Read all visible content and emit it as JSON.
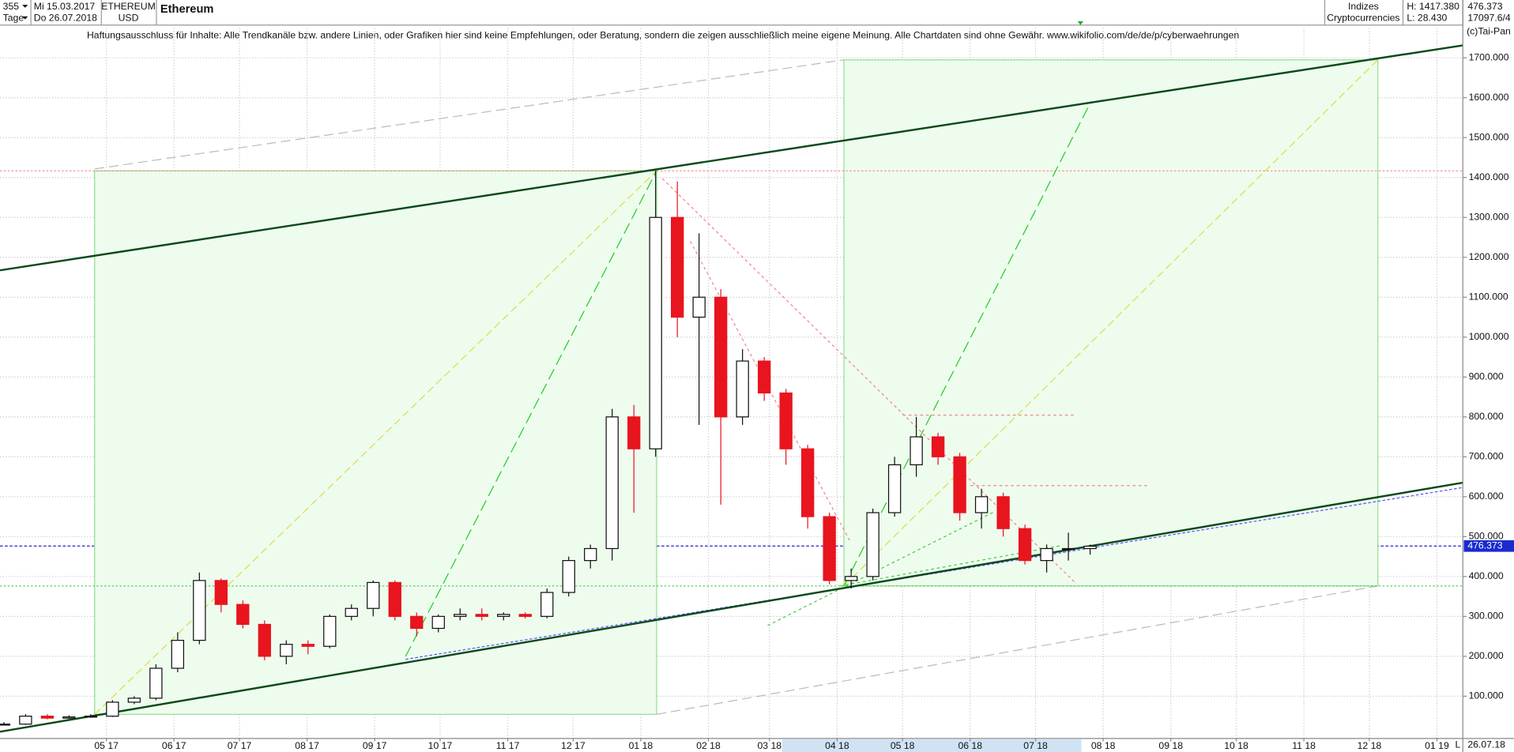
{
  "header": {
    "count": "355",
    "period": "Tage",
    "from": {
      "value": "2017-03-15",
      "label": "Mi 15.03.2017"
    },
    "to": {
      "value": "2018-07-26",
      "label": "Do 26.07.2018"
    },
    "symbol": "ETHEREUM",
    "currency": "USD",
    "group": "Indizes",
    "category": "Cryptocurrencies",
    "high": "H: 1417.380",
    "low": "L: 28.430",
    "last": "476.373",
    "volume": "17097.6/4",
    "copyright": "(c)Tai-Pan",
    "footer_date": "26.07.18",
    "footer_mode": "L"
  },
  "chart_data": {
    "type": "candlestick",
    "title": "Ethereum",
    "subtitle": "Haftungsausschluss für Inhalte: Alle Trendkanäle bzw. andere Linien, oder Grafiken hier sind keine Empfehlungen, oder Beratung, sondern die zeigen ausschließlich meine eigene Meinung. Alle Chartdaten sind ohne Gewähr.  www.wikifolio.com/de/de/p/cyberwaehrungen",
    "open": [
      28,
      30,
      50,
      45,
      48,
      50,
      85,
      95,
      170,
      240,
      390,
      330,
      280,
      200,
      230,
      225,
      300,
      320,
      385,
      300,
      270,
      300,
      305,
      300,
      305,
      300,
      360,
      440,
      470,
      800,
      720,
      1300,
      1050,
      1100,
      800,
      940,
      860,
      720,
      550,
      390,
      400,
      560,
      680,
      750,
      700,
      560,
      600,
      520,
      440,
      470,
      470
    ],
    "high": [
      35,
      55,
      55,
      52,
      55,
      90,
      100,
      180,
      260,
      410,
      395,
      340,
      290,
      240,
      240,
      305,
      330,
      390,
      390,
      310,
      305,
      320,
      320,
      310,
      310,
      370,
      450,
      480,
      820,
      830,
      1417,
      1390,
      1260,
      1120,
      970,
      950,
      870,
      730,
      560,
      420,
      570,
      700,
      800,
      760,
      710,
      620,
      610,
      530,
      480,
      510,
      480
    ],
    "low": [
      28,
      28,
      42,
      43,
      46,
      48,
      80,
      90,
      160,
      230,
      310,
      270,
      190,
      180,
      205,
      220,
      290,
      300,
      290,
      250,
      260,
      290,
      290,
      290,
      295,
      295,
      350,
      420,
      440,
      560,
      700,
      1000,
      780,
      580,
      780,
      840,
      680,
      520,
      380,
      370,
      390,
      550,
      650,
      680,
      540,
      520,
      500,
      430,
      410,
      440,
      455
    ],
    "close": [
      30,
      50,
      45,
      48,
      50,
      85,
      95,
      170,
      240,
      390,
      330,
      280,
      200,
      230,
      225,
      300,
      320,
      385,
      300,
      270,
      300,
      305,
      300,
      305,
      300,
      360,
      440,
      470,
      800,
      720,
      1300,
      1050,
      1100,
      800,
      940,
      860,
      720,
      550,
      390,
      400,
      560,
      680,
      750,
      700,
      560,
      600,
      520,
      440,
      470,
      470,
      476
    ],
    "up_color": "#111111",
    "down_color": "#e8141e",
    "last_price": {
      "value": 476.373,
      "label": "476.373"
    },
    "ylim": [
      -6,
      1782
    ],
    "yticks": [
      {
        "value": 100,
        "label": "100.000"
      },
      {
        "value": 200,
        "label": "200.000"
      },
      {
        "value": 300,
        "label": "300.000"
      },
      {
        "value": 400,
        "label": "400.000"
      },
      {
        "value": 500,
        "label": "500.000"
      },
      {
        "value": 600,
        "label": "600.000"
      },
      {
        "value": 700,
        "label": "700.000"
      },
      {
        "value": 800,
        "label": "800.000"
      },
      {
        "value": 900,
        "label": "900.000"
      },
      {
        "value": 1000,
        "label": "1000.000"
      },
      {
        "value": 1100,
        "label": "1100.000"
      },
      {
        "value": 1200,
        "label": "1200.000"
      },
      {
        "value": 1300,
        "label": "1300.000"
      },
      {
        "value": 1400,
        "label": "1400.000"
      },
      {
        "value": 1500,
        "label": "1500.000"
      },
      {
        "value": 1600,
        "label": "1600.000"
      },
      {
        "value": 1700,
        "label": "1700.000"
      }
    ],
    "xticks": [
      {
        "value": "2017-05",
        "label": "05 17"
      },
      {
        "value": "2017-06",
        "label": "06 17"
      },
      {
        "value": "2017-07",
        "label": "07 17"
      },
      {
        "value": "2017-08",
        "label": "08 17"
      },
      {
        "value": "2017-09",
        "label": "09 17"
      },
      {
        "value": "2017-10",
        "label": "10 17"
      },
      {
        "value": "2017-11",
        "label": "11 17"
      },
      {
        "value": "2017-12",
        "label": "12 17"
      },
      {
        "value": "2018-01",
        "label": "01 18"
      },
      {
        "value": "2018-02",
        "label": "02 18"
      },
      {
        "value": "2018-03",
        "label": "03 18"
      },
      {
        "value": "2018-04",
        "label": "04 18"
      },
      {
        "value": "2018-05",
        "label": "05 18"
      },
      {
        "value": "2018-06",
        "label": "06 18"
      },
      {
        "value": "2018-07",
        "label": "07 18"
      },
      {
        "value": "2018-08",
        "label": "08 18"
      },
      {
        "value": "2018-09",
        "label": "09 18"
      },
      {
        "value": "2018-10",
        "label": "10 18"
      },
      {
        "value": "2018-11",
        "label": "11 18"
      },
      {
        "value": "2018-12",
        "label": "12 18"
      },
      {
        "value": "2019-01",
        "label": "01 19"
      }
    ],
    "grid": true
  }
}
